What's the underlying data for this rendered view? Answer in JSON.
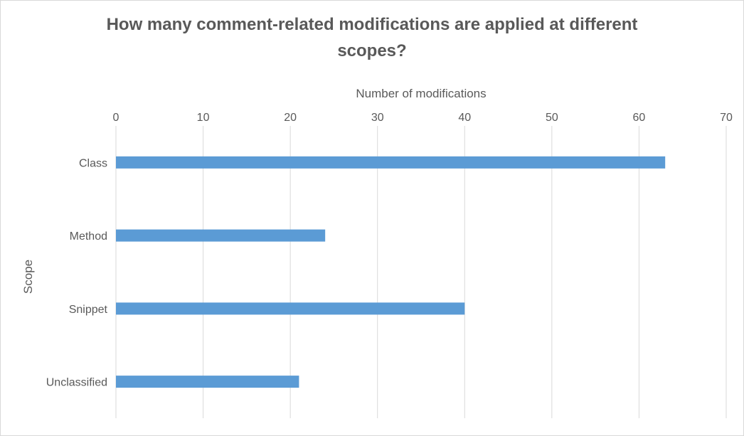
{
  "chart_data": {
    "type": "bar",
    "orientation": "horizontal",
    "title": "How many comment-related modifications are applied at different scopes?",
    "title_lines": [
      "How many comment-related modifications are applied at different",
      "scopes?"
    ],
    "xlabel": "Number of modifications",
    "ylabel": "Scope",
    "categories": [
      "Class",
      "Method",
      "Snippet",
      "Unclassified"
    ],
    "values": [
      63,
      24,
      40,
      21
    ],
    "xlim": [
      0,
      70
    ],
    "xticks": [
      0,
      10,
      20,
      30,
      40,
      50,
      60,
      70
    ],
    "x_axis_position": "top",
    "grid": true,
    "legend": "none",
    "bar_color": "#5b9bd5",
    "grid_color": "#d9d9d9"
  }
}
